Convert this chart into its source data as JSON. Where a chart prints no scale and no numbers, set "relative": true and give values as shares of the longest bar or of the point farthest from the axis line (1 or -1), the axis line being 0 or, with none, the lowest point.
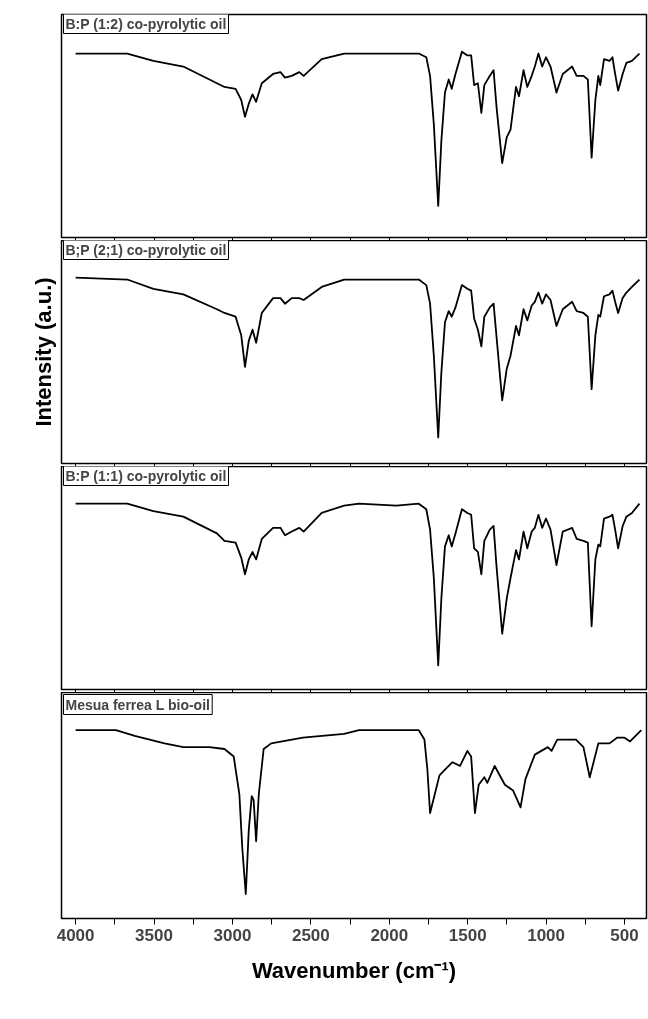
{
  "chart_data": [
    {
      "type": "line",
      "relative": true,
      "xlim": [
        4090,
        360
      ],
      "xticks": [
        4000,
        3750,
        3500,
        3250,
        3000,
        2750,
        2500,
        2250,
        2000,
        1750,
        1500,
        1250,
        1000,
        750,
        500
      ],
      "tick_labels": false,
      "grid": false,
      "annotations": [
        "B:P (1:2) co-pyrolytic oil"
      ],
      "series": [
        {
          "color": "#000000",
          "x": [
            4000,
            3671,
            3504,
            3313,
            3099,
            3051,
            2980,
            2944,
            2920,
            2896,
            2872,
            2849,
            2813,
            2741,
            2694,
            2665,
            2622,
            2574,
            2546,
            2431,
            2288,
            2193,
            1955,
            1812,
            1764,
            1740,
            1716,
            1688,
            1668,
            1645,
            1621,
            1602,
            1578,
            1537,
            1502,
            1478,
            1459,
            1435,
            1413,
            1394,
            1359,
            1335,
            1316,
            1280,
            1251,
            1227,
            1192,
            1173,
            1144,
            1120,
            1092,
            1072,
            1049,
            1025,
            1001,
            972,
            934,
            894,
            834,
            805,
            762,
            734,
            710,
            686,
            667,
            655,
            631,
            596,
            577,
            560,
            541,
            512,
            488,
            453,
            405
          ],
          "values": [
            0.99,
            0.99,
            0.95,
            0.92,
            0.83,
            0.81,
            0.8,
            0.74,
            0.65,
            0.72,
            0.77,
            0.73,
            0.83,
            0.88,
            0.89,
            0.86,
            0.87,
            0.89,
            0.87,
            0.96,
            0.99,
            0.99,
            0.99,
            0.99,
            0.97,
            0.87,
            0.61,
            0.17,
            0.52,
            0.78,
            0.85,
            0.8,
            0.88,
            1.0,
            0.98,
            0.98,
            0.82,
            0.83,
            0.67,
            0.82,
            0.87,
            0.9,
            0.7,
            0.4,
            0.54,
            0.58,
            0.81,
            0.76,
            0.9,
            0.81,
            0.87,
            0.92,
            0.99,
            0.92,
            0.97,
            0.92,
            0.78,
            0.88,
            0.92,
            0.87,
            0.87,
            0.85,
            0.43,
            0.74,
            0.87,
            0.82,
            0.96,
            0.95,
            0.97,
            0.88,
            0.79,
            0.88,
            0.94,
            0.95,
            0.99
          ]
        }
      ]
    },
    {
      "type": "line",
      "relative": true,
      "ylabel": "Intensity (a.u.)",
      "xlim": [
        4090,
        360
      ],
      "xticks": [
        4000,
        3750,
        3500,
        3250,
        3000,
        2750,
        2500,
        2250,
        2000,
        1750,
        1500,
        1250,
        1000,
        750,
        500
      ],
      "tick_labels": false,
      "grid": false,
      "annotations": [
        "B;P (2;1) co-pyrolytic oil"
      ],
      "series": [
        {
          "color": "#000000",
          "x": [
            4000,
            3671,
            3504,
            3313,
            3099,
            3051,
            2980,
            2944,
            2920,
            2896,
            2872,
            2849,
            2813,
            2741,
            2694,
            2665,
            2622,
            2574,
            2546,
            2431,
            2288,
            2193,
            1955,
            1812,
            1764,
            1740,
            1716,
            1688,
            1668,
            1645,
            1621,
            1602,
            1578,
            1537,
            1502,
            1478,
            1459,
            1435,
            1413,
            1394,
            1359,
            1335,
            1316,
            1280,
            1251,
            1227,
            1192,
            1173,
            1144,
            1120,
            1092,
            1072,
            1049,
            1025,
            1001,
            972,
            934,
            894,
            834,
            805,
            762,
            734,
            710,
            686,
            667,
            655,
            631,
            596,
            577,
            560,
            541,
            512,
            488,
            453,
            405
          ],
          "values": [
            1.0,
            0.99,
            0.94,
            0.91,
            0.83,
            0.81,
            0.79,
            0.69,
            0.52,
            0.66,
            0.72,
            0.65,
            0.81,
            0.89,
            0.89,
            0.86,
            0.89,
            0.89,
            0.88,
            0.95,
            0.99,
            0.99,
            0.99,
            0.99,
            0.96,
            0.86,
            0.58,
            0.14,
            0.49,
            0.76,
            0.82,
            0.79,
            0.84,
            0.96,
            0.94,
            0.93,
            0.78,
            0.72,
            0.63,
            0.79,
            0.84,
            0.86,
            0.68,
            0.34,
            0.51,
            0.58,
            0.74,
            0.69,
            0.83,
            0.77,
            0.85,
            0.87,
            0.92,
            0.86,
            0.91,
            0.88,
            0.74,
            0.83,
            0.87,
            0.82,
            0.81,
            0.79,
            0.4,
            0.69,
            0.8,
            0.79,
            0.9,
            0.91,
            0.93,
            0.87,
            0.81,
            0.89,
            0.92,
            0.95,
            0.99
          ]
        }
      ]
    },
    {
      "type": "line",
      "relative": true,
      "xlim": [
        4090,
        360
      ],
      "xticks": [
        4000,
        3750,
        3500,
        3250,
        3000,
        2750,
        2500,
        2250,
        2000,
        1750,
        1500,
        1250,
        1000,
        750,
        500
      ],
      "tick_labels": false,
      "grid": false,
      "annotations": [
        "B:P (1:1) co-pyrolytic oil"
      ],
      "series": [
        {
          "color": "#000000",
          "x": [
            4000,
            3671,
            3504,
            3313,
            3099,
            3051,
            2980,
            2944,
            2920,
            2896,
            2872,
            2849,
            2813,
            2741,
            2694,
            2665,
            2622,
            2574,
            2546,
            2431,
            2288,
            2193,
            1955,
            1812,
            1764,
            1740,
            1716,
            1688,
            1668,
            1645,
            1621,
            1602,
            1578,
            1537,
            1502,
            1478,
            1459,
            1435,
            1413,
            1394,
            1359,
            1335,
            1316,
            1280,
            1251,
            1227,
            1192,
            1173,
            1144,
            1120,
            1092,
            1072,
            1049,
            1025,
            1001,
            972,
            934,
            894,
            834,
            805,
            762,
            734,
            710,
            686,
            667,
            655,
            631,
            596,
            577,
            560,
            541,
            512,
            488,
            453,
            405
          ],
          "values": [
            1.0,
            1.0,
            0.96,
            0.93,
            0.84,
            0.8,
            0.79,
            0.71,
            0.62,
            0.7,
            0.74,
            0.7,
            0.81,
            0.87,
            0.87,
            0.83,
            0.85,
            0.87,
            0.85,
            0.95,
            0.99,
            1.0,
            0.99,
            1.0,
            0.97,
            0.86,
            0.6,
            0.13,
            0.49,
            0.77,
            0.83,
            0.77,
            0.84,
            0.97,
            0.95,
            0.94,
            0.76,
            0.74,
            0.62,
            0.8,
            0.86,
            0.88,
            0.66,
            0.3,
            0.49,
            0.6,
            0.75,
            0.7,
            0.85,
            0.76,
            0.85,
            0.87,
            0.94,
            0.87,
            0.92,
            0.86,
            0.67,
            0.85,
            0.87,
            0.81,
            0.8,
            0.79,
            0.34,
            0.7,
            0.78,
            0.77,
            0.92,
            0.93,
            0.94,
            0.86,
            0.76,
            0.88,
            0.93,
            0.95,
            1.0
          ]
        }
      ]
    },
    {
      "type": "line",
      "relative": true,
      "xlabel": "Wavenumber (cm⁻¹)",
      "xlim": [
        4090,
        360
      ],
      "xticks": [
        4000,
        {
          "value": 3750,
          "label": null
        },
        3500,
        {
          "value": 3250,
          "label": null
        },
        3000,
        {
          "value": 2750,
          "label": null
        },
        2500,
        {
          "value": 2250,
          "label": null
        },
        2000,
        {
          "value": 1750,
          "label": null
        },
        1500,
        {
          "value": 1250,
          "label": null
        },
        1000,
        {
          "value": 750,
          "label": null
        },
        500
      ],
      "tick_labels": "x",
      "grid": false,
      "annotations": [
        "Mesua ferrea L bio-oil"
      ],
      "series": [
        {
          "color": "#000000",
          "x": [
            4000,
            3743,
            3623,
            3433,
            3313,
            3147,
            3051,
            2992,
            2956,
            2937,
            2915,
            2896,
            2877,
            2865,
            2849,
            2832,
            2801,
            2753,
            2551,
            2288,
            2193,
            1955,
            1812,
            1776,
            1757,
            1740,
            1716,
            1680,
            1645,
            1597,
            1549,
            1502,
            1478,
            1454,
            1430,
            1394,
            1375,
            1328,
            1263,
            1211,
            1163,
            1132,
            1072,
            989,
            965,
            929,
            810,
            762,
            722,
            667,
            596,
            548,
            500,
            465,
            393
          ],
          "values": [
            1.0,
            1.0,
            0.97,
            0.93,
            0.91,
            0.91,
            0.9,
            0.86,
            0.66,
            0.37,
            0.13,
            0.47,
            0.65,
            0.63,
            0.41,
            0.66,
            0.9,
            0.93,
            0.96,
            0.98,
            1.0,
            1.0,
            1.0,
            0.95,
            0.79,
            0.56,
            0.64,
            0.76,
            0.79,
            0.83,
            0.81,
            0.89,
            0.86,
            0.56,
            0.71,
            0.75,
            0.72,
            0.81,
            0.71,
            0.68,
            0.59,
            0.74,
            0.87,
            0.91,
            0.89,
            0.95,
            0.95,
            0.91,
            0.75,
            0.93,
            0.93,
            0.96,
            0.96,
            0.94,
            1.0
          ]
        }
      ]
    }
  ]
}
